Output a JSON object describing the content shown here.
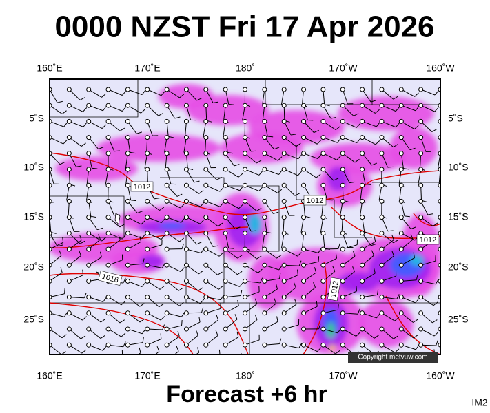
{
  "header": {
    "title": "0000 NZST Fri 17 Apr 2026"
  },
  "map": {
    "lon_labels": [
      "160˚E",
      "170˚E",
      "180˚",
      "170˚W",
      "160˚W"
    ],
    "lat_labels": [
      "5˚S",
      "10˚S",
      "15˚S",
      "20˚S",
      "25˚S"
    ],
    "isobar_labels": [
      "1012",
      "1012",
      "1012",
      "1016",
      "1012"
    ],
    "copyright": "Copyright metvuw.com"
  },
  "footer": {
    "forecast": "Forecast +6 hr",
    "code": "IM2"
  }
}
